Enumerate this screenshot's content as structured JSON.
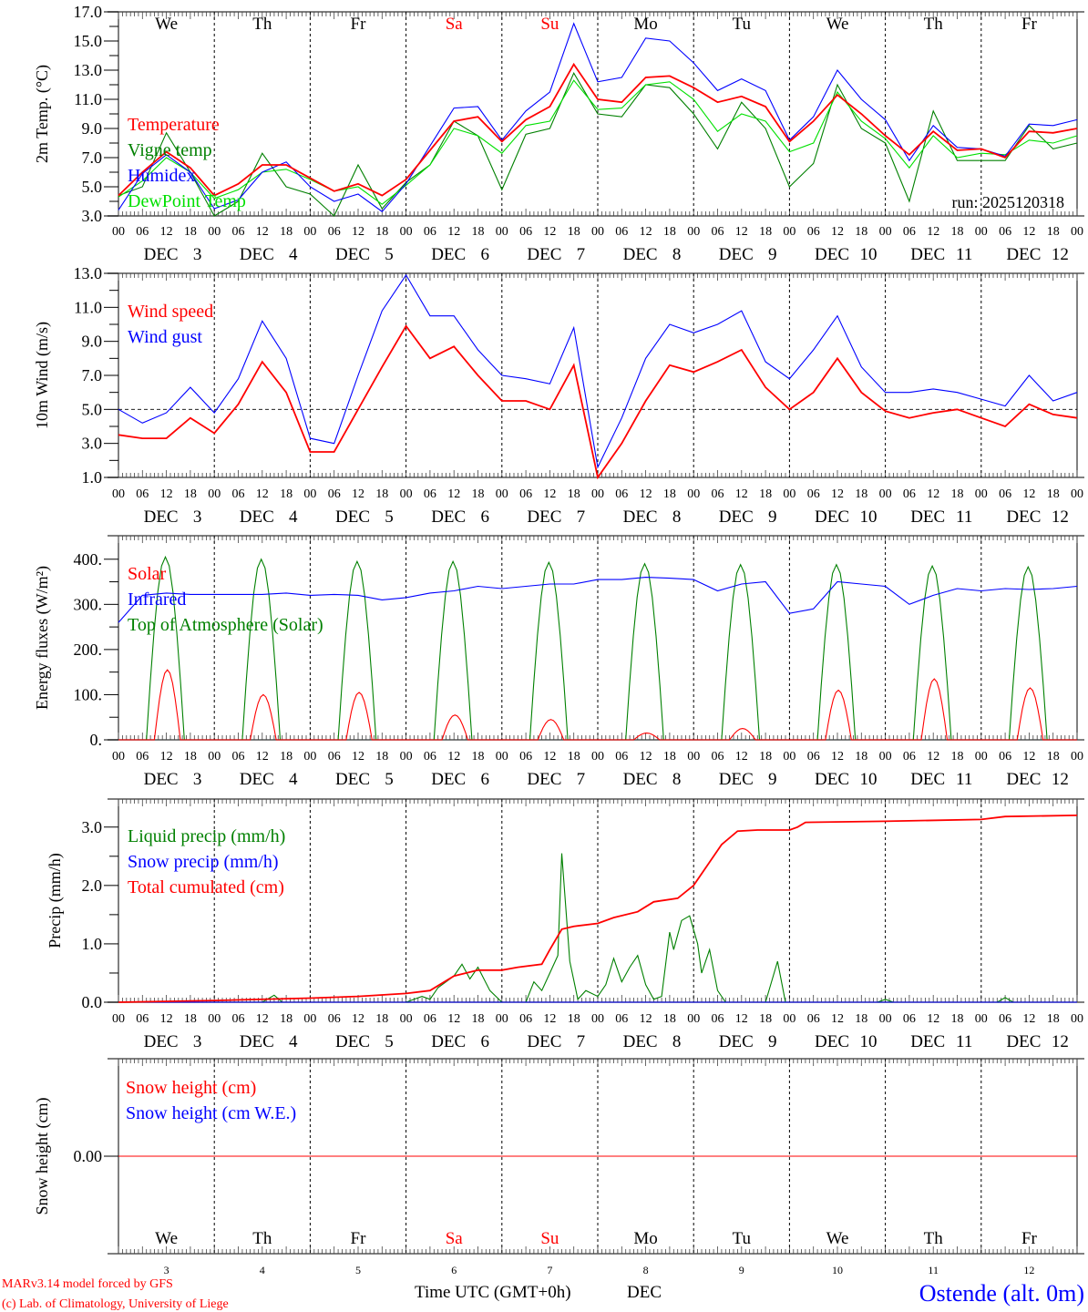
{
  "month": "DEC",
  "hour_ticks": [
    "00",
    "06",
    "12",
    "18"
  ],
  "days": [
    {
      "abbr": "We",
      "num": "3",
      "weekend": false
    },
    {
      "abbr": "Th",
      "num": "4",
      "weekend": false
    },
    {
      "abbr": "Fr",
      "num": "5",
      "weekend": false
    },
    {
      "abbr": "Sa",
      "num": "6",
      "weekend": true
    },
    {
      "abbr": "Su",
      "num": "7",
      "weekend": true
    },
    {
      "abbr": "Mo",
      "num": "8",
      "weekend": false
    },
    {
      "abbr": "Tu",
      "num": "9",
      "weekend": false
    },
    {
      "abbr": "We",
      "num": "10",
      "weekend": false
    },
    {
      "abbr": "Th",
      "num": "11",
      "weekend": false
    },
    {
      "abbr": "Fr",
      "num": "12",
      "weekend": false
    }
  ],
  "run_label": "run: 2025120318",
  "footer": {
    "model": "MARv3.14 model forced by GFS",
    "credit": "(c) Lab. of Climatology, University of Liege",
    "time_axis": "Time UTC (GMT+0h)",
    "time_month": "DEC",
    "station": "Ostende (alt. 0m)"
  },
  "colors": {
    "red": "#ff0000",
    "blue": "#0000ff",
    "green": "#008000",
    "lightgreen": "#00e000",
    "weekend": "#ff0000",
    "text": "#000000"
  },
  "chart_data": [
    {
      "type": "line",
      "ylabel": "2m Temp. (°C)",
      "ylim": [
        3,
        17
      ],
      "yticks": [
        3,
        5,
        7,
        9,
        11,
        13,
        15,
        17
      ],
      "ytick_labels": [
        "3.0",
        "5.0",
        "7.0",
        "9.0",
        "11.0",
        "13.0",
        "15.0",
        "17.0"
      ],
      "step_hours": 6,
      "series": [
        {
          "name": "Vigne temp",
          "color": "#008000",
          "values": [
            4.4,
            5.0,
            8.7,
            6.0,
            3.0,
            4.0,
            7.3,
            5.0,
            4.5,
            3.0,
            6.5,
            3.5,
            5.3,
            6.5,
            9.5,
            8.5,
            4.8,
            8.6,
            9.0,
            12.8,
            10.0,
            9.8,
            12.0,
            11.8,
            10.0,
            7.6,
            10.8,
            9.0,
            5.0,
            6.6,
            12.0,
            9.0,
            8.0,
            4.0,
            10.2,
            6.8,
            6.8,
            6.8,
            9.2,
            7.6,
            8.0
          ]
        },
        {
          "name": "DewPoint Temp",
          "color": "#00e000",
          "values": [
            4.3,
            5.4,
            7.0,
            6.0,
            4.2,
            4.8,
            6.0,
            6.2,
            5.5,
            4.7,
            5.0,
            3.8,
            5.1,
            6.5,
            9.0,
            8.5,
            7.3,
            9.2,
            9.5,
            12.3,
            10.3,
            10.4,
            12.0,
            12.2,
            11.0,
            8.8,
            10.0,
            9.5,
            7.4,
            8.0,
            11.5,
            9.5,
            8.3,
            6.3,
            8.5,
            7.0,
            7.3,
            7.2,
            8.2,
            8.0,
            8.5
          ]
        },
        {
          "name": "Humidex",
          "color": "#0000ff",
          "values": [
            3.4,
            5.9,
            7.2,
            6.0,
            3.5,
            4.1,
            6.0,
            6.7,
            5.0,
            4.0,
            4.5,
            3.3,
            5.2,
            7.8,
            10.4,
            10.5,
            8.2,
            10.2,
            11.5,
            16.2,
            12.2,
            12.5,
            15.2,
            15.0,
            13.5,
            11.6,
            12.4,
            11.6,
            8.2,
            9.8,
            13.0,
            11.0,
            9.6,
            6.8,
            9.2,
            7.7,
            7.6,
            7.1,
            9.3,
            9.2,
            9.6
          ]
        },
        {
          "name": "Temperature",
          "color": "#ff0000",
          "values": [
            4.4,
            6.0,
            7.4,
            6.3,
            4.4,
            5.2,
            6.5,
            6.5,
            5.6,
            4.7,
            5.2,
            4.4,
            5.5,
            7.5,
            9.5,
            9.8,
            8.1,
            9.6,
            10.5,
            13.4,
            11.0,
            10.8,
            12.5,
            12.6,
            11.8,
            10.8,
            11.2,
            10.5,
            8.1,
            9.5,
            11.3,
            10.0,
            8.5,
            7.2,
            8.8,
            7.5,
            7.6,
            7.0,
            8.8,
            8.7,
            9.0
          ]
        }
      ],
      "legend": [
        {
          "label": "Temperature",
          "color": "#ff0000"
        },
        {
          "label": "Vigne temp",
          "color": "#008000"
        },
        {
          "label": "Humidex",
          "color": "#0000ff"
        },
        {
          "label": "DewPoint Temp",
          "color": "#00e000"
        }
      ]
    },
    {
      "type": "line",
      "ylabel": "10m Wind (m/s)",
      "ylim": [
        1,
        13
      ],
      "yticks": [
        1,
        3,
        5,
        7,
        9,
        11,
        13
      ],
      "ytick_labels": [
        "1.0",
        "3.0",
        "5.0",
        "7.0",
        "9.0",
        "11.0",
        "13.0"
      ],
      "reference_line": 5.0,
      "step_hours": 6,
      "series": [
        {
          "name": "Wind gust",
          "color": "#0000ff",
          "values": [
            5.0,
            4.2,
            4.8,
            6.3,
            4.8,
            6.8,
            10.2,
            8.0,
            3.3,
            3.0,
            7.0,
            10.8,
            12.9,
            10.5,
            10.5,
            8.5,
            7.0,
            6.8,
            6.5,
            9.8,
            1.6,
            4.5,
            8.0,
            10.0,
            9.5,
            10.0,
            10.8,
            7.8,
            6.8,
            8.5,
            10.5,
            7.5,
            6.0,
            6.0,
            6.2,
            6.0,
            5.6,
            5.2,
            7.0,
            5.5,
            6.0
          ]
        },
        {
          "name": "Wind speed",
          "color": "#ff0000",
          "values": [
            3.5,
            3.3,
            3.3,
            4.5,
            3.6,
            5.3,
            7.8,
            6.0,
            2.5,
            2.5,
            5.0,
            7.5,
            9.9,
            8.0,
            8.7,
            7.0,
            5.5,
            5.5,
            5.0,
            7.6,
            1.0,
            3.0,
            5.5,
            7.6,
            7.2,
            7.8,
            8.5,
            6.3,
            5.0,
            6.0,
            8.0,
            6.0,
            4.9,
            4.5,
            4.8,
            5.0,
            4.5,
            4.0,
            5.3,
            4.7,
            4.5
          ]
        }
      ],
      "legend": [
        {
          "label": "Wind speed",
          "color": "#ff0000"
        },
        {
          "label": "Wind gust",
          "color": "#0000ff"
        }
      ]
    },
    {
      "type": "line",
      "ylabel": "Energy fluxes (W/m²)",
      "ylim": [
        0,
        452
      ],
      "yticks": [
        0,
        100,
        200,
        300,
        400
      ],
      "ytick_labels": [
        "0.",
        "100.",
        "200.",
        "300.",
        "400."
      ],
      "step_hours": 6,
      "series": [
        {
          "name": "Top of Atmosphere (Solar)",
          "color": "#008000",
          "diurnal": true,
          "daylight_hours": [
            7,
            16.5
          ],
          "daily_peak": [
            405,
            400,
            395,
            395,
            393,
            390,
            388,
            388,
            385,
            383
          ]
        },
        {
          "name": "Infrared",
          "color": "#0000ff",
          "values": [
            260,
            320,
            325,
            322,
            322,
            322,
            322,
            325,
            320,
            322,
            320,
            310,
            315,
            325,
            330,
            340,
            335,
            340,
            345,
            345,
            355,
            355,
            360,
            358,
            355,
            330,
            345,
            350,
            280,
            290,
            350,
            345,
            340,
            300,
            320,
            335,
            330,
            335,
            333,
            335,
            340
          ]
        },
        {
          "name": "Solar",
          "color": "#ff0000",
          "diurnal": true,
          "daylight_hours": [
            9,
            15.5
          ],
          "daily_peak": [
            155,
            100,
            105,
            55,
            45,
            15,
            25,
            110,
            135,
            115
          ]
        }
      ],
      "legend": [
        {
          "label": "Solar",
          "color": "#ff0000"
        },
        {
          "label": "Infrared",
          "color": "#0000ff"
        },
        {
          "label": "Top of Atmosphere (Solar)",
          "color": "#008000"
        }
      ]
    },
    {
      "type": "line",
      "ylabel": "Precip (mm/h)",
      "ylim": [
        0,
        3.48
      ],
      "yticks": [
        0,
        1,
        2,
        3
      ],
      "ytick_labels": [
        "0.0",
        "1.0",
        "2.0",
        "3.0"
      ],
      "series": [
        {
          "name": "Liquid precip (mm/h)",
          "color": "#008000",
          "points": [
            [
              0,
              0
            ],
            [
              24,
              0
            ],
            [
              36,
              0
            ],
            [
              39,
              0.12
            ],
            [
              41,
              0
            ],
            [
              72,
              0
            ],
            [
              76,
              0.1
            ],
            [
              78,
              0.05
            ],
            [
              80,
              0.25
            ],
            [
              84,
              0.45
            ],
            [
              86,
              0.65
            ],
            [
              88,
              0.4
            ],
            [
              90,
              0.6
            ],
            [
              93,
              0.2
            ],
            [
              96,
              0
            ],
            [
              102,
              0
            ],
            [
              104,
              0.35
            ],
            [
              106,
              0.2
            ],
            [
              108,
              0.5
            ],
            [
              110,
              0.8
            ],
            [
              111,
              2.55
            ],
            [
              113,
              0.7
            ],
            [
              115,
              0.05
            ],
            [
              117,
              0.2
            ],
            [
              120,
              0.1
            ],
            [
              122,
              0.3
            ],
            [
              124,
              0.75
            ],
            [
              126,
              0.35
            ],
            [
              128,
              0.6
            ],
            [
              130,
              0.8
            ],
            [
              132,
              0.3
            ],
            [
              134,
              0.05
            ],
            [
              136,
              0.1
            ],
            [
              138,
              1.2
            ],
            [
              139,
              0.9
            ],
            [
              141,
              1.4
            ],
            [
              143,
              1.48
            ],
            [
              145,
              1.0
            ],
            [
              146,
              0.5
            ],
            [
              148,
              0.9
            ],
            [
              150,
              0.2
            ],
            [
              152,
              0
            ],
            [
              162,
              0
            ],
            [
              165,
              0.7
            ],
            [
              167,
              0
            ],
            [
              190,
              0
            ],
            [
              192,
              0.05
            ],
            [
              194,
              0
            ],
            [
              220,
              0
            ],
            [
              222,
              0.08
            ],
            [
              224,
              0
            ],
            [
              240,
              0
            ]
          ]
        },
        {
          "name": "Snow precip (mm/h)",
          "color": "#0000ff",
          "points": [
            [
              0,
              0
            ],
            [
              240,
              0
            ]
          ]
        },
        {
          "name": "Total cumulated (cm)",
          "color": "#ff0000",
          "points": [
            [
              0,
              0
            ],
            [
              24,
              0.03
            ],
            [
              48,
              0.07
            ],
            [
              60,
              0.1
            ],
            [
              72,
              0.15
            ],
            [
              78,
              0.2
            ],
            [
              84,
              0.45
            ],
            [
              90,
              0.55
            ],
            [
              96,
              0.55
            ],
            [
              100,
              0.6
            ],
            [
              106,
              0.65
            ],
            [
              108,
              0.9
            ],
            [
              111,
              1.25
            ],
            [
              114,
              1.3
            ],
            [
              120,
              1.35
            ],
            [
              124,
              1.45
            ],
            [
              130,
              1.55
            ],
            [
              134,
              1.72
            ],
            [
              140,
              1.78
            ],
            [
              144,
              2.0
            ],
            [
              148,
              2.4
            ],
            [
              151,
              2.7
            ],
            [
              155,
              2.93
            ],
            [
              160,
              2.95
            ],
            [
              168,
              2.95
            ],
            [
              170,
              3.0
            ],
            [
              172,
              3.08
            ],
            [
              192,
              3.1
            ],
            [
              216,
              3.13
            ],
            [
              222,
              3.18
            ],
            [
              240,
              3.2
            ]
          ]
        }
      ],
      "legend": [
        {
          "label": "Liquid precip (mm/h)",
          "color": "#008000"
        },
        {
          "label": "Snow precip (mm/h)",
          "color": "#0000ff"
        },
        {
          "label": "Total cumulated (cm)",
          "color": "#ff0000"
        }
      ]
    },
    {
      "type": "line",
      "ylabel": "Snow height (cm)",
      "ylim": [
        -1,
        1
      ],
      "yticks": [
        0
      ],
      "ytick_labels": [
        "0.00"
      ],
      "series": [
        {
          "name": "Snow height (cm W.E.)",
          "color": "#0000ff",
          "points": [
            [
              0,
              0
            ],
            [
              240,
              0
            ]
          ]
        },
        {
          "name": "Snow height (cm)",
          "color": "#ff0000",
          "points": [
            [
              0,
              0
            ],
            [
              240,
              0
            ]
          ]
        }
      ],
      "legend": [
        {
          "label": "Snow height (cm)",
          "color": "#ff0000"
        },
        {
          "label": "Snow height (cm W.E.)",
          "color": "#0000ff"
        }
      ]
    }
  ]
}
